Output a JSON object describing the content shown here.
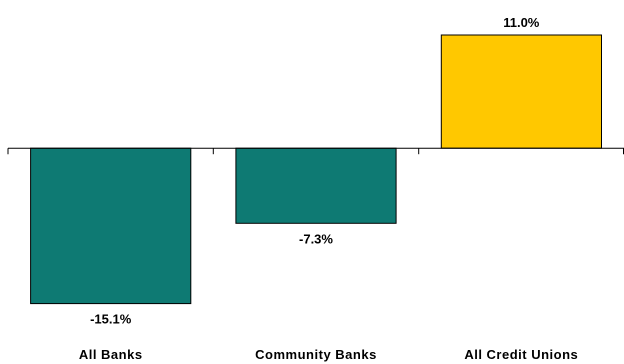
{
  "chart_data": {
    "type": "bar",
    "categories": [
      "All Banks",
      "Community Banks",
      "All Credit Unions"
    ],
    "values": [
      -15.1,
      -7.3,
      11.0
    ],
    "value_labels": [
      "-15.1%",
      "-7.3%",
      "11.0%"
    ],
    "colors": [
      "#0e7a73",
      "#0e7a73",
      "#ffc800"
    ],
    "ylim": [
      -16.5,
      11.0
    ],
    "grid": false,
    "title": "",
    "xlabel": "",
    "ylabel": ""
  }
}
